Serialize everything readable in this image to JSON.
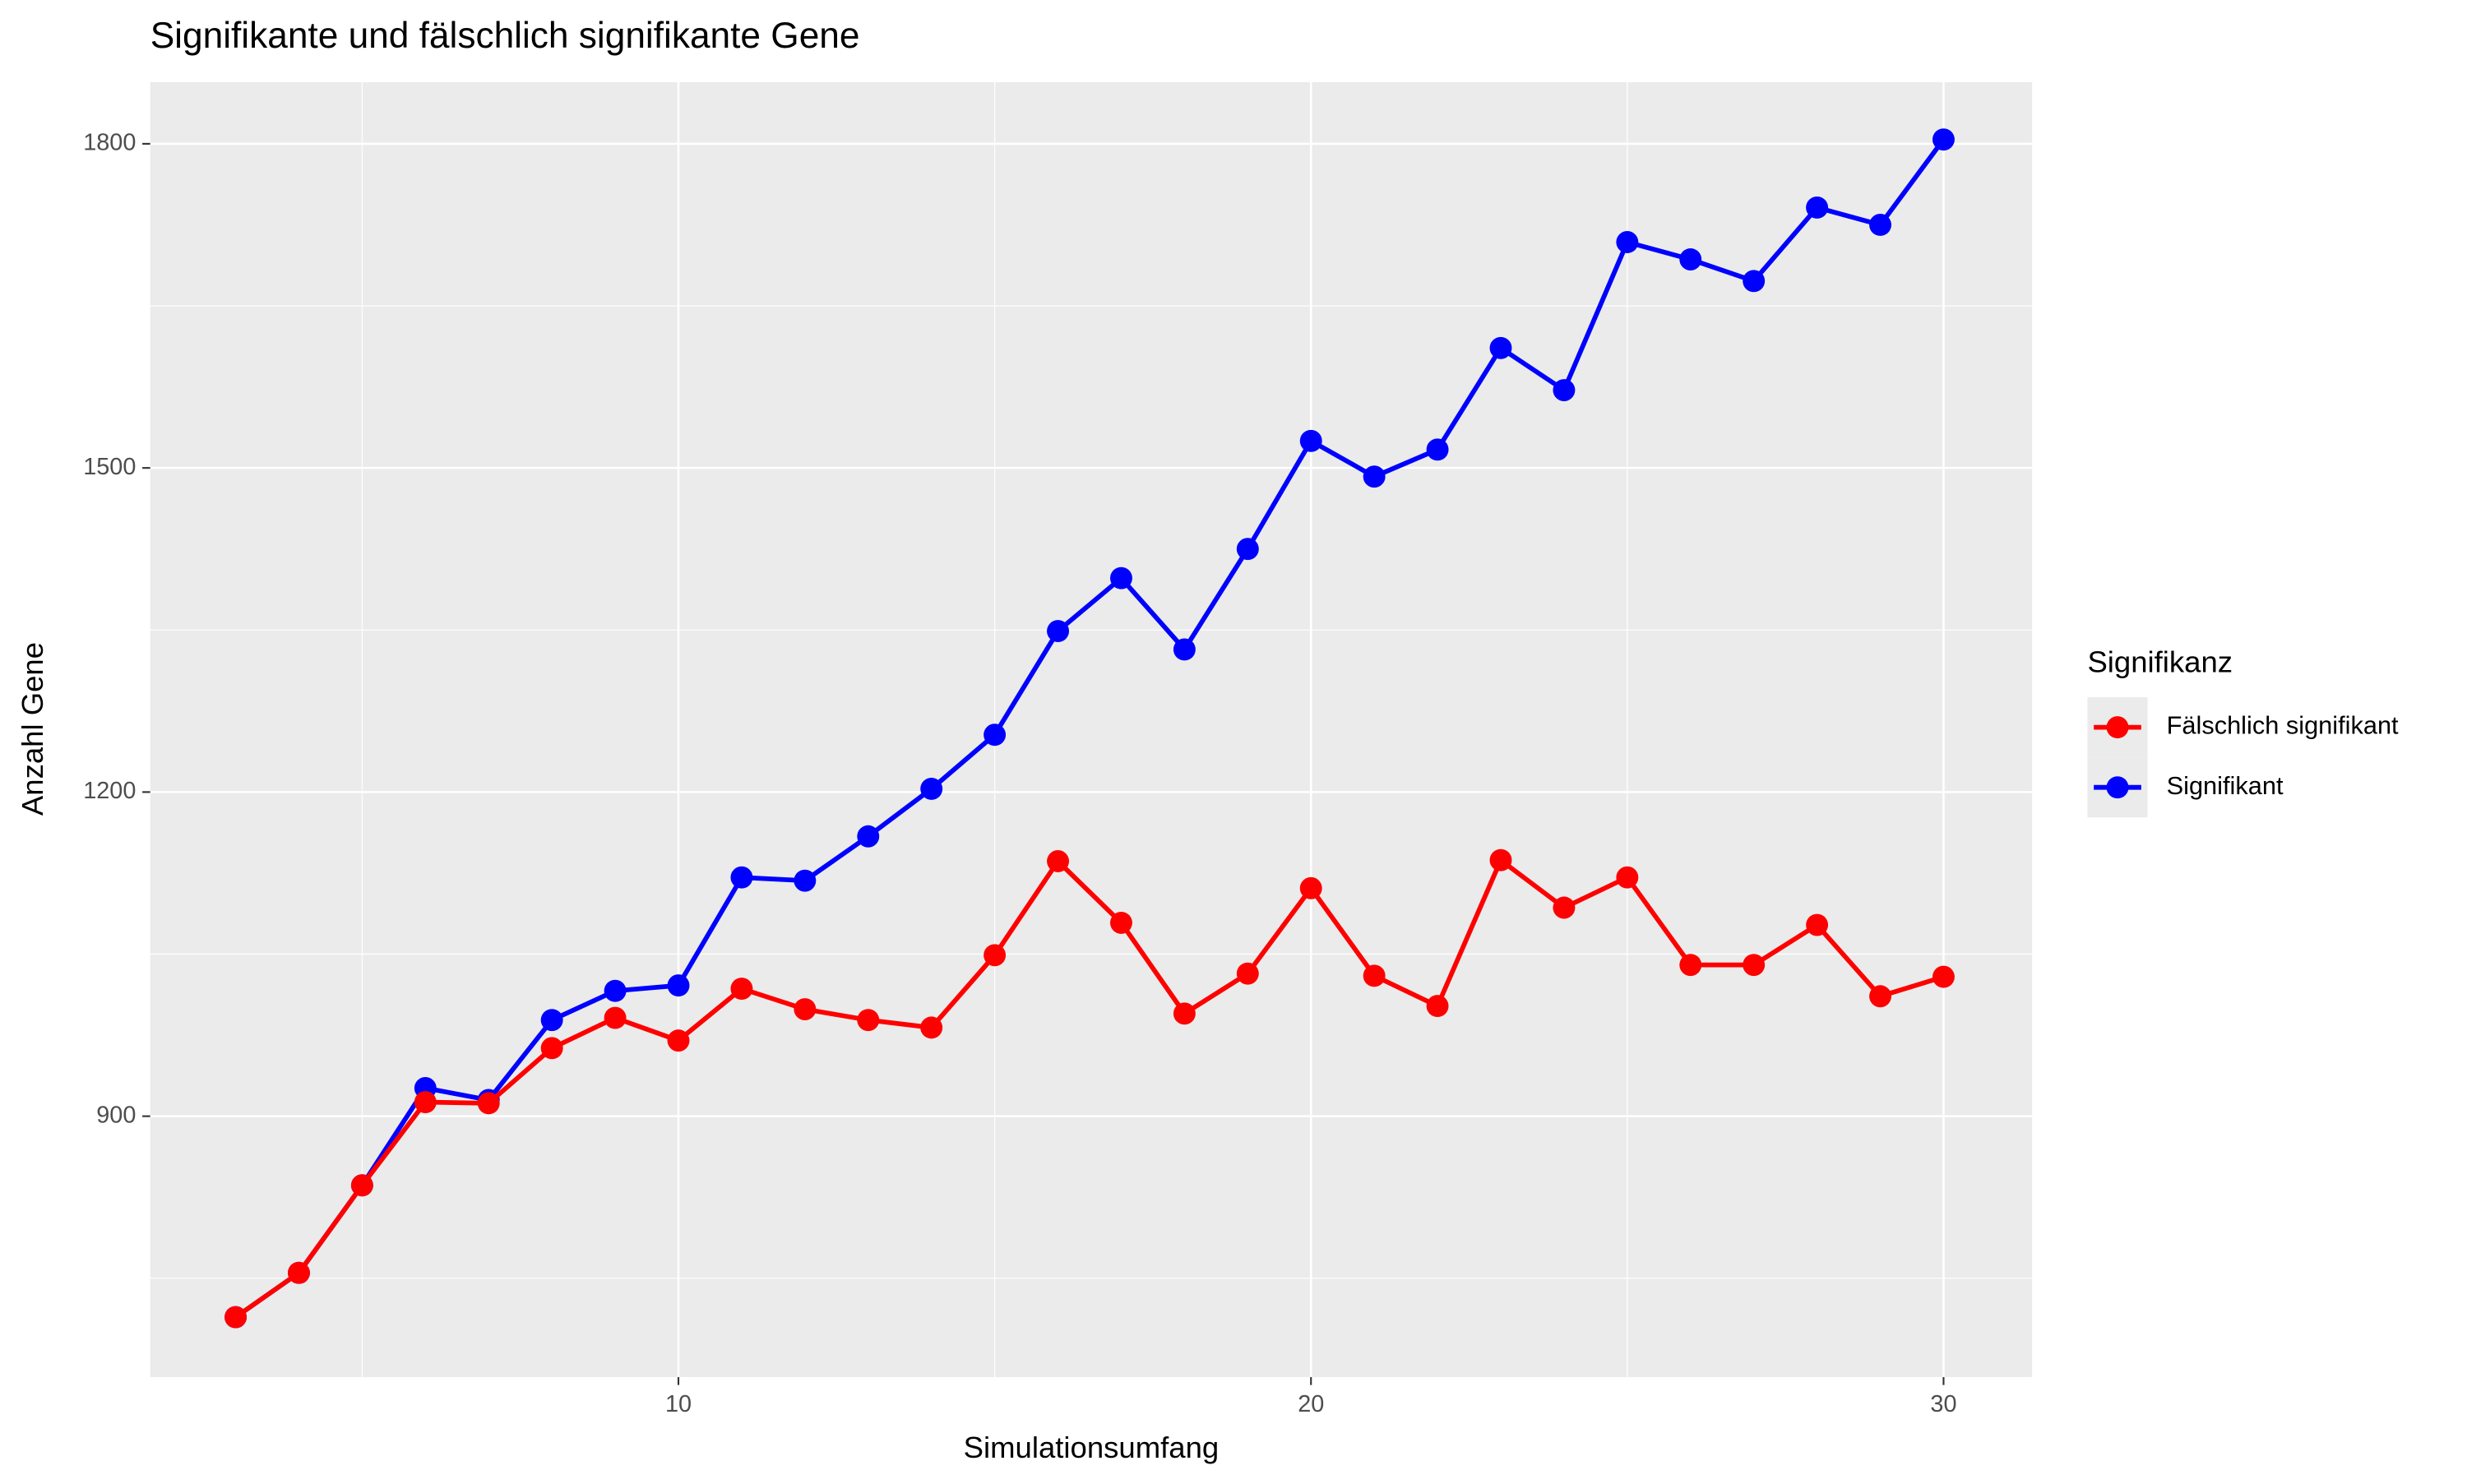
{
  "chart_data": {
    "type": "line",
    "title": "Signifikante und fälschlich signifikante Gene",
    "x_label": "Simulationsumfang",
    "y_label": "Anzahl Gene",
    "legend_title": "Signifikanz",
    "legend_position": "right",
    "grid": true,
    "x": [
      3,
      4,
      5,
      6,
      7,
      8,
      9,
      10,
      11,
      12,
      13,
      14,
      15,
      16,
      17,
      18,
      19,
      20,
      21,
      22,
      23,
      24,
      25,
      26,
      27,
      28,
      29,
      30
    ],
    "series": [
      {
        "name": "Fälschlich signifikant",
        "color": "#ff0000",
        "values": [
          714,
          755,
          836,
          913,
          912,
          963,
          991,
          970,
          1018,
          999,
          989,
          982,
          1049,
          1136,
          1079,
          995,
          1032,
          1111,
          1030,
          1002,
          1137,
          1093,
          1121,
          1040,
          1040,
          1077,
          1011,
          1029
        ]
      },
      {
        "name": "Signifikant",
        "color": "#0000ff",
        "values": [
          714,
          755,
          836,
          926,
          915,
          989,
          1016,
          1021,
          1121,
          1118,
          1159,
          1203,
          1253,
          1349,
          1398,
          1332,
          1425,
          1525,
          1492,
          1517,
          1611,
          1572,
          1709,
          1693,
          1673,
          1741,
          1725,
          1804
        ]
      }
    ],
    "xlim": [
      1.65,
      31.4
    ],
    "xticks": [
      10,
      20,
      30
    ],
    "x_minor_ticks": [
      5,
      15,
      25
    ],
    "ylim": [
      658.5,
      1857
    ],
    "yticks": [
      900,
      1200,
      1500,
      1800
    ],
    "y_minor_ticks": [
      750,
      1050,
      1350,
      1650
    ]
  }
}
